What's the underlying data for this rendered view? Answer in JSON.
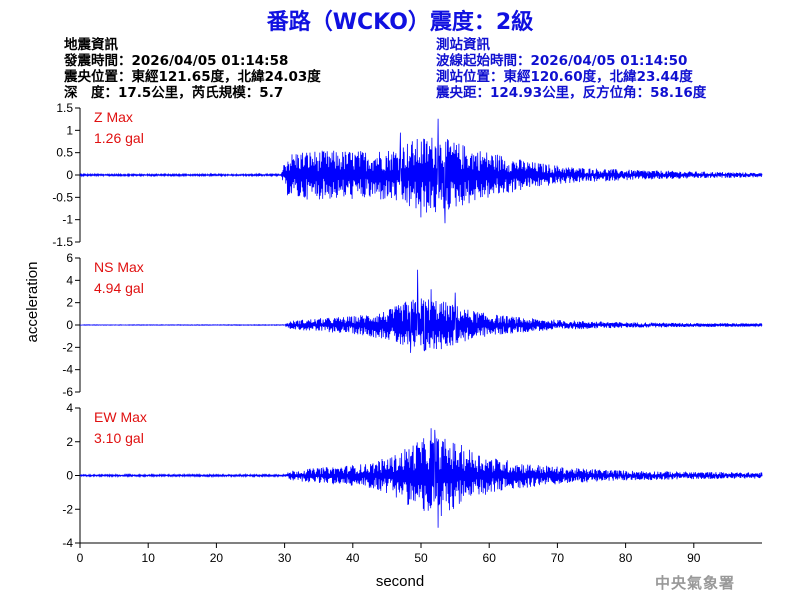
{
  "header": {
    "title": "番路（WCKO）震度：2級"
  },
  "quake_info": {
    "heading": "地震資訊",
    "origin_time": "發震時間：2026/04/05 01:14:58",
    "epicenter": "震央位置：東經121.65度，北緯24.03度",
    "depth_magnitude": "深　度：17.5公里，芮氏規模：5.7"
  },
  "station_info": {
    "heading": "測站資訊",
    "wave_start": "波線起始時間：2026/04/05 01:14:50",
    "station_location": "測站位置：東經120.60度，北緯23.44度",
    "distance": "震央距：124.93公里，反方位角：58.16度"
  },
  "credit": "中央氣象署",
  "colors": {
    "title": "#1010e0",
    "trace": "#0000ff",
    "max_label": "#e01010",
    "station_text": "#1010d0"
  },
  "chart_data": {
    "type": "line",
    "xlabel": "second",
    "ylabel": "acceleration",
    "xlim": [
      0,
      100
    ],
    "xticks": [
      0,
      10,
      20,
      30,
      40,
      50,
      60,
      70,
      80,
      90
    ],
    "series": [
      {
        "name": "Z",
        "max_title": "Z Max",
        "max_value": "1.26 gal",
        "ylim": [
          -1.5,
          1.5
        ],
        "yticks": [
          -1.5,
          -1,
          -0.5,
          0,
          0.5,
          1,
          1.5
        ],
        "ytick_labels": [
          "-1.5",
          "-1",
          "-0.5",
          "0",
          "0.5",
          "1",
          "1.5"
        ],
        "envelope": [
          [
            0,
            0.02
          ],
          [
            29.5,
            0.02
          ],
          [
            30.2,
            0.45
          ],
          [
            32,
            0.55
          ],
          [
            36,
            0.55
          ],
          [
            42,
            0.55
          ],
          [
            46,
            0.6
          ],
          [
            48,
            0.75
          ],
          [
            50,
            0.85
          ],
          [
            52,
            0.9
          ],
          [
            54,
            0.8
          ],
          [
            58,
            0.6
          ],
          [
            62,
            0.45
          ],
          [
            66,
            0.3
          ],
          [
            72,
            0.18
          ],
          [
            80,
            0.12
          ],
          [
            90,
            0.08
          ],
          [
            100,
            0.05
          ]
        ],
        "peaks": [
          [
            52.5,
            1.26
          ],
          [
            53.5,
            -1.08
          ],
          [
            47,
            0.95
          ],
          [
            50,
            -0.95
          ]
        ]
      },
      {
        "name": "NS",
        "max_title": "NS Max",
        "max_value": "4.94 gal",
        "ylim": [
          -6,
          6
        ],
        "yticks": [
          -6,
          -4,
          -2,
          0,
          2,
          4,
          6
        ],
        "ytick_labels": [
          "-6",
          "-4",
          "-2",
          "0",
          "2",
          "4",
          "6"
        ],
        "envelope": [
          [
            0,
            0.02
          ],
          [
            30,
            0.03
          ],
          [
            31,
            0.4
          ],
          [
            35,
            0.6
          ],
          [
            40,
            0.8
          ],
          [
            45,
            1.3
          ],
          [
            48,
            2.2
          ],
          [
            50,
            2.5
          ],
          [
            52,
            2.4
          ],
          [
            54,
            2.0
          ],
          [
            57,
            1.4
          ],
          [
            60,
            1.0
          ],
          [
            66,
            0.6
          ],
          [
            72,
            0.4
          ],
          [
            80,
            0.25
          ],
          [
            90,
            0.18
          ],
          [
            100,
            0.15
          ]
        ],
        "peaks": [
          [
            49.5,
            4.94
          ],
          [
            48.5,
            -2.5
          ],
          [
            51.5,
            3.2
          ],
          [
            55,
            2.9
          ],
          [
            50.5,
            -2.3
          ]
        ]
      },
      {
        "name": "EW",
        "max_title": "EW Max",
        "max_value": "3.10 gal",
        "ylim": [
          -4,
          4
        ],
        "yticks": [
          -4,
          -2,
          0,
          2,
          4
        ],
        "ytick_labels": [
          "-4",
          "-2",
          "0",
          "2",
          "4"
        ],
        "envelope": [
          [
            0,
            0.05
          ],
          [
            30,
            0.06
          ],
          [
            31,
            0.3
          ],
          [
            36,
            0.5
          ],
          [
            42,
            0.7
          ],
          [
            46,
            1.2
          ],
          [
            49,
            2.0
          ],
          [
            51,
            2.3
          ],
          [
            53,
            2.3
          ],
          [
            56,
            1.8
          ],
          [
            60,
            1.1
          ],
          [
            66,
            0.7
          ],
          [
            72,
            0.45
          ],
          [
            80,
            0.3
          ],
          [
            90,
            0.22
          ],
          [
            100,
            0.18
          ]
        ],
        "peaks": [
          [
            52.5,
            -3.1
          ],
          [
            51.5,
            2.8
          ],
          [
            52,
            2.7
          ],
          [
            53,
            -2.4
          ]
        ]
      }
    ]
  }
}
